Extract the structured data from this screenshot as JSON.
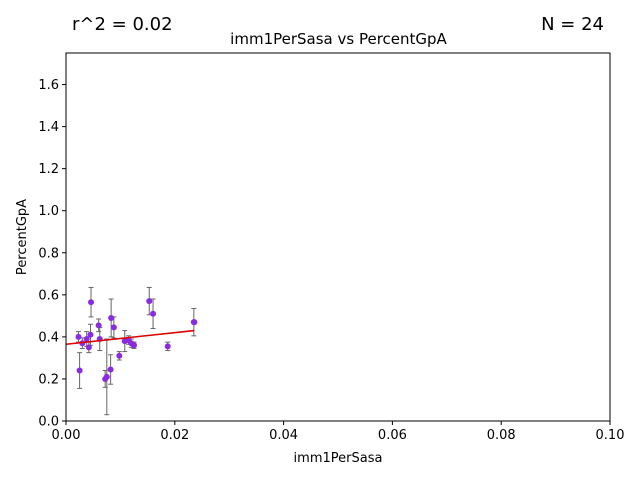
{
  "chart_data": {
    "type": "scatter",
    "title": "imm1PerSasa vs PercentGpA",
    "xlabel": "imm1PerSasa",
    "ylabel": "PercentGpA",
    "xlim": [
      0,
      0.1
    ],
    "ylim": [
      0,
      1.75
    ],
    "xticks": [
      0,
      0.02,
      0.04,
      0.06,
      0.08,
      0.1
    ],
    "xtick_labels": [
      "0.00",
      "0.02",
      "0.04",
      "0.06",
      "0.08",
      "0.10"
    ],
    "yticks": [
      0,
      0.2,
      0.4,
      0.6,
      0.8,
      1.0,
      1.2,
      1.4,
      1.6
    ],
    "ytick_labels": [
      "0.0",
      "0.2",
      "0.4",
      "0.6",
      "0.8",
      "1.0",
      "1.2",
      "1.4",
      "1.6"
    ],
    "grid": false,
    "annotations": {
      "r2": "r^2 = 0.02",
      "n": "N = 24"
    },
    "colors": {
      "points": "#8a2be2",
      "errorbars": "#666666",
      "fit": "#dd0000"
    },
    "points": [
      {
        "x": 0.0023,
        "y": 0.4,
        "err": 0.025
      },
      {
        "x": 0.0025,
        "y": 0.24,
        "err": 0.085
      },
      {
        "x": 0.003,
        "y": 0.37,
        "err": 0.025
      },
      {
        "x": 0.0038,
        "y": 0.39,
        "err": 0.035
      },
      {
        "x": 0.0042,
        "y": 0.35,
        "err": 0.025
      },
      {
        "x": 0.0045,
        "y": 0.41,
        "err": 0.05
      },
      {
        "x": 0.0046,
        "y": 0.565,
        "err": 0.07
      },
      {
        "x": 0.006,
        "y": 0.455,
        "err": 0.03
      },
      {
        "x": 0.0062,
        "y": 0.39,
        "err": 0.055
      },
      {
        "x": 0.0072,
        "y": 0.2,
        "err": 0.04
      },
      {
        "x": 0.0075,
        "y": 0.21,
        "err": 0.18
      },
      {
        "x": 0.0082,
        "y": 0.245,
        "err": 0.07
      },
      {
        "x": 0.0083,
        "y": 0.49,
        "err": 0.09
      },
      {
        "x": 0.0088,
        "y": 0.445,
        "err": 0.05
      },
      {
        "x": 0.0098,
        "y": 0.31,
        "err": 0.02
      },
      {
        "x": 0.0108,
        "y": 0.38,
        "err": 0.05
      },
      {
        "x": 0.0115,
        "y": 0.385,
        "err": 0.02
      },
      {
        "x": 0.012,
        "y": 0.37,
        "err": 0.02
      },
      {
        "x": 0.0125,
        "y": 0.36,
        "err": 0.015
      },
      {
        "x": 0.0153,
        "y": 0.57,
        "err": 0.065
      },
      {
        "x": 0.016,
        "y": 0.51,
        "err": 0.07
      },
      {
        "x": 0.0187,
        "y": 0.355,
        "err": 0.02
      },
      {
        "x": 0.0235,
        "y": 0.47,
        "err": 0.065
      },
      {
        "x": 0.0236,
        "y": 0.47,
        "err": 0.0
      }
    ],
    "fit_line": {
      "x": [
        0,
        0.0236
      ],
      "y": [
        0.365,
        0.43
      ]
    }
  }
}
